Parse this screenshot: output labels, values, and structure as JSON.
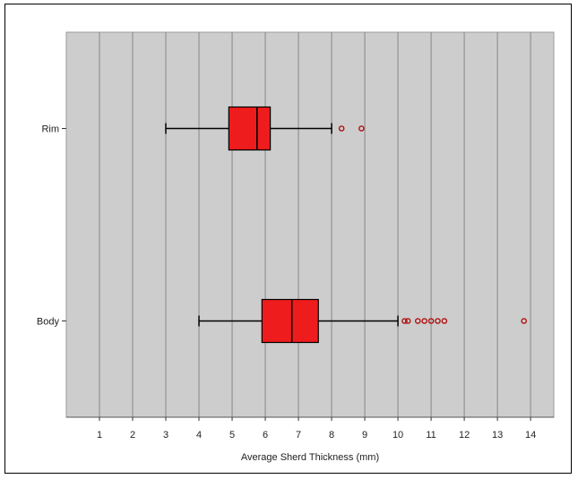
{
  "chart_data": {
    "type": "boxplot",
    "orientation": "horizontal",
    "xlabel": "Average Sherd Thickness (mm)",
    "ylabel": "",
    "xlim": [
      0,
      14.7
    ],
    "x_ticks": [
      "1",
      "2",
      "3",
      "4",
      "5",
      "6",
      "7",
      "8",
      "9",
      "10",
      "11",
      "12",
      "13",
      "14"
    ],
    "x_tick_values": [
      1,
      2,
      3,
      4,
      5,
      6,
      7,
      8,
      9,
      10,
      11,
      12,
      13,
      14
    ],
    "grid": true,
    "plot_background": "#cdcdcd",
    "box_color": "#ee1c1c",
    "categories": [
      "Rim",
      "Body"
    ],
    "boxes": [
      {
        "category": "Rim",
        "whisker_low": 3.0,
        "q1": 4.9,
        "median": 5.75,
        "q3": 6.15,
        "whisker_high": 8.0,
        "outliers": [
          8.3,
          8.9
        ]
      },
      {
        "category": "Body",
        "whisker_low": 4.0,
        "q1": 5.9,
        "median": 6.8,
        "q3": 7.6,
        "whisker_high": 10.0,
        "outliers": [
          10.2,
          10.3,
          10.6,
          10.8,
          11.0,
          11.2,
          11.4,
          13.8
        ]
      }
    ]
  }
}
